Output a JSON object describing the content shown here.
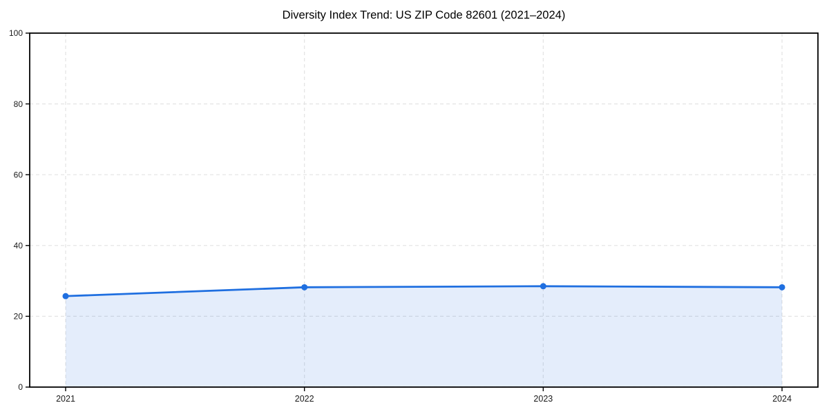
{
  "chart_data": {
    "type": "area",
    "title": "Diversity Index Trend: US ZIP Code 82601 (2021–2024)",
    "xlabel": "",
    "ylabel": "",
    "categories": [
      "2021",
      "2022",
      "2023",
      "2024"
    ],
    "series": [
      {
        "name": "Diversity Index",
        "values": [
          25.7,
          28.2,
          28.5,
          28.2
        ]
      }
    ],
    "ylim": [
      0,
      100
    ],
    "yticks": [
      0,
      20,
      40,
      60,
      80,
      100
    ],
    "grid": "dashed",
    "legend_position": "none",
    "colors": {
      "line": "#1f6fe0",
      "marker": "#1f6fe0",
      "area_fill": "rgba(31,111,224,0.12)",
      "gridline": "#e3e3e3",
      "axis_frame": "#000000",
      "tick_label": "#1a1a1a",
      "title": "#000000",
      "background": "#ffffff"
    }
  }
}
